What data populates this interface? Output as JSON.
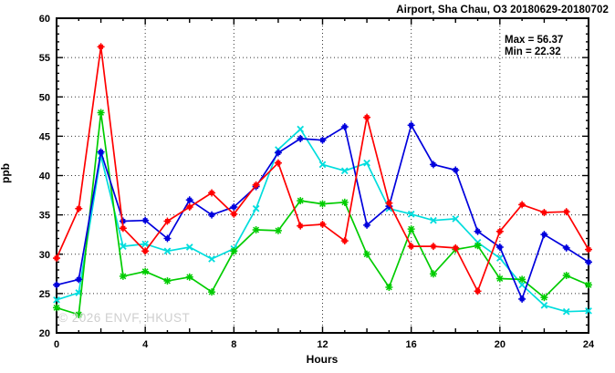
{
  "watermark": "© 2026 ENVF, HKUST",
  "chart_data": {
    "type": "line",
    "title": "Airport, Sha Chau, O3 20180629-20180702",
    "xlabel": "Hours",
    "ylabel": "ppb",
    "xlim": [
      0,
      24
    ],
    "ylim": [
      20,
      60
    ],
    "xticks": [
      0,
      4,
      8,
      12,
      16,
      20,
      24
    ],
    "yticks": [
      20,
      25,
      30,
      35,
      40,
      45,
      50,
      55,
      60
    ],
    "grid": true,
    "legend": "none",
    "x": [
      0,
      1,
      2,
      3,
      4,
      5,
      6,
      7,
      8,
      9,
      10,
      11,
      12,
      13,
      14,
      15,
      16,
      17,
      18,
      19,
      20,
      21,
      22,
      23,
      24
    ],
    "series": [
      {
        "name": "cyan-series",
        "color": "#00dddd",
        "marker": "x",
        "values": [
          24.2,
          25.1,
          42.5,
          31.0,
          31.3,
          30.4,
          30.9,
          29.4,
          30.7,
          35.8,
          43.3,
          45.9,
          41.4,
          40.6,
          41.6,
          35.8,
          35.1,
          34.3,
          34.5,
          31.5,
          29.5,
          26.1,
          23.5,
          22.7,
          22.8
        ]
      },
      {
        "name": "green-series",
        "color": "#00cc00",
        "marker": "asterisk",
        "values": [
          23.2,
          22.32,
          48.0,
          27.2,
          27.8,
          26.6,
          27.1,
          25.2,
          30.4,
          33.1,
          33.0,
          36.8,
          36.4,
          36.6,
          30.0,
          25.8,
          33.2,
          27.5,
          30.6,
          31.1,
          26.9,
          26.8,
          24.5,
          27.3,
          26.1
        ]
      },
      {
        "name": "blue-series",
        "color": "#0000dd",
        "marker": "square-plus",
        "values": [
          26.1,
          26.8,
          43.0,
          34.2,
          34.3,
          32.0,
          36.9,
          35.0,
          36.0,
          38.6,
          42.9,
          44.7,
          44.5,
          46.2,
          33.7,
          36.1,
          46.4,
          41.4,
          40.7,
          32.9,
          30.9,
          24.3,
          32.5,
          30.8,
          29.0
        ]
      },
      {
        "name": "red-series",
        "color": "#ff0000",
        "marker": "square-plus",
        "values": [
          29.5,
          35.8,
          56.37,
          33.3,
          30.4,
          34.2,
          36.0,
          37.8,
          35.1,
          38.8,
          41.6,
          33.6,
          33.8,
          31.7,
          47.4,
          36.5,
          31.0,
          31.0,
          30.8,
          25.3,
          32.9,
          36.3,
          35.3,
          35.4,
          30.6
        ]
      }
    ],
    "annotations": {
      "max": "Max = 56.37",
      "min": "Min = 22.32"
    }
  }
}
